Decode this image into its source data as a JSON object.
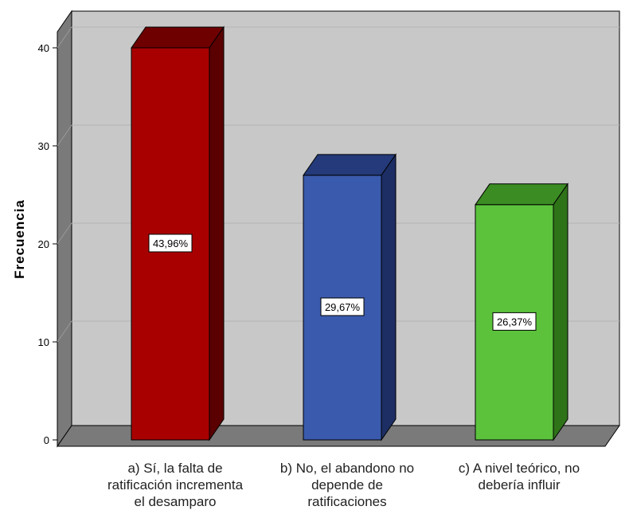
{
  "chart_data": {
    "type": "bar",
    "title": "",
    "xlabel": "",
    "ylabel": "Frecuencia",
    "ylim": [
      0,
      42
    ],
    "yticks": [
      0,
      10,
      20,
      30,
      40
    ],
    "grid": true,
    "legend": "none",
    "categories": [
      [
        "a) Sí, la falta de",
        "ratificación incrementa",
        "el desamparo"
      ],
      [
        "b) No, el abandono no",
        "depende de",
        "ratificaciones"
      ],
      [
        "c) A nivel teórico, no",
        "debería influir"
      ]
    ],
    "values": [
      40,
      27,
      24
    ],
    "data_labels": [
      "43,96%",
      "29,67%",
      "26,37%"
    ],
    "colors": {
      "bars": [
        "#a80000",
        "#3a5aad",
        "#5cc23c"
      ],
      "bar_tops": [
        "#6e0000",
        "#243a7a",
        "#3b8c22"
      ],
      "bar_sides": [
        "#5a0000",
        "#1c2e63",
        "#2f7319"
      ],
      "plot_background": "#c8c8c8",
      "walls": "#7a7a7a"
    }
  }
}
